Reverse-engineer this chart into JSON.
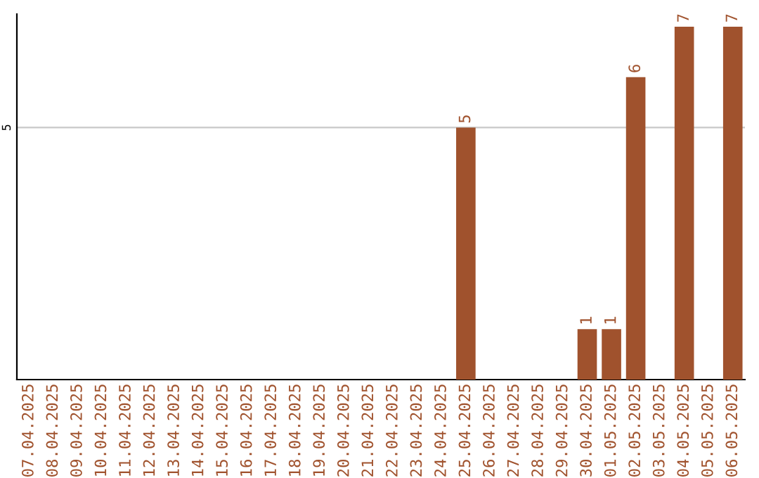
{
  "chart_data": {
    "type": "bar",
    "categories": [
      "07.04.2025",
      "08.04.2025",
      "09.04.2025",
      "10.04.2025",
      "11.04.2025",
      "12.04.2025",
      "13.04.2025",
      "14.04.2025",
      "15.04.2025",
      "16.04.2025",
      "17.04.2025",
      "18.04.2025",
      "19.04.2025",
      "20.04.2025",
      "21.04.2025",
      "22.04.2025",
      "23.04.2025",
      "24.04.2025",
      "25.04.2025",
      "26.04.2025",
      "27.04.2025",
      "28.04.2025",
      "29.04.2025",
      "30.04.2025",
      "01.05.2025",
      "02.05.2025",
      "03.05.2025",
      "04.05.2025",
      "05.05.2025",
      "06.05.2025"
    ],
    "values": [
      null,
      null,
      null,
      null,
      null,
      null,
      null,
      null,
      null,
      null,
      null,
      null,
      null,
      null,
      null,
      null,
      null,
      null,
      5,
      null,
      null,
      null,
      null,
      1,
      1,
      6,
      null,
      7,
      null,
      7
    ],
    "data_labels": true,
    "color": "#a0522d",
    "ylim": [
      0,
      7.25
    ],
    "yticks": [
      5
    ],
    "grid": "y",
    "legend": false
  }
}
